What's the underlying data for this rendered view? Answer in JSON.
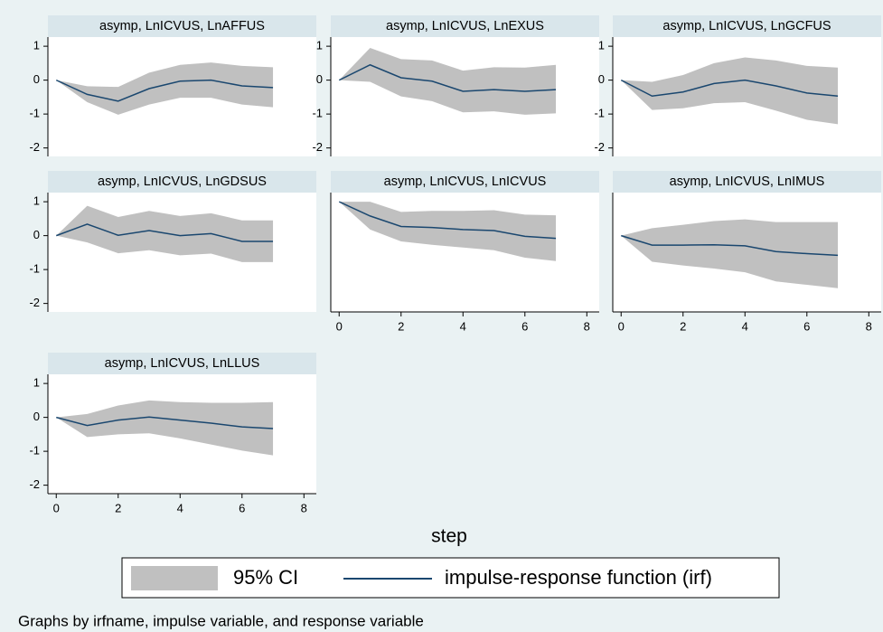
{
  "chart_data": [
    {
      "type": "line",
      "title": "asymp, LnICVUS, LnAFFUS",
      "x": [
        0,
        1,
        2,
        3,
        4,
        5,
        6,
        7
      ],
      "values": [
        0,
        -0.42,
        -0.62,
        -0.25,
        -0.03,
        0,
        -0.17,
        -0.22
      ],
      "band": {
        "upper": [
          0,
          -0.18,
          -0.2,
          0.22,
          0.45,
          0.52,
          0.42,
          0.38
        ],
        "lower": [
          0,
          -0.65,
          -1.02,
          -0.72,
          -0.52,
          -0.52,
          -0.72,
          -0.8
        ]
      },
      "xlim": [
        -0.27,
        8.4
      ],
      "ylim": [
        -2.25,
        1.27
      ],
      "yticks": [
        -2,
        -1,
        0,
        1
      ]
    },
    {
      "type": "line",
      "title": "asymp, LnICVUS, LnEXUS",
      "x": [
        0,
        1,
        2,
        3,
        4,
        5,
        6,
        7
      ],
      "values": [
        0,
        0.45,
        0.07,
        -0.03,
        -0.33,
        -0.28,
        -0.33,
        -0.28
      ],
      "band": {
        "upper": [
          0,
          0.95,
          0.62,
          0.58,
          0.28,
          0.38,
          0.37,
          0.45
        ],
        "lower": [
          0,
          -0.05,
          -0.48,
          -0.62,
          -0.95,
          -0.92,
          -1.02,
          -0.98
        ]
      },
      "xlim": [
        -0.27,
        8.4
      ],
      "ylim": [
        -2.25,
        1.27
      ],
      "yticks": [
        -2,
        -1,
        0,
        1
      ]
    },
    {
      "type": "line",
      "title": "asymp, LnICVUS, LnGCFUS",
      "x": [
        0,
        1,
        2,
        3,
        4,
        5,
        6,
        7
      ],
      "values": [
        0,
        -0.47,
        -0.35,
        -0.1,
        0,
        -0.17,
        -0.38,
        -0.47
      ],
      "band": {
        "upper": [
          0,
          -0.05,
          0.15,
          0.5,
          0.67,
          0.58,
          0.42,
          0.37
        ],
        "lower": [
          0,
          -0.88,
          -0.83,
          -0.68,
          -0.65,
          -0.9,
          -1.17,
          -1.3
        ]
      },
      "xlim": [
        -0.27,
        8.4
      ],
      "ylim": [
        -2.25,
        1.27
      ],
      "yticks": [
        -2,
        -1,
        0,
        1
      ]
    },
    {
      "type": "line",
      "title": "asymp, LnICVUS, LnGDSUS",
      "x": [
        0,
        1,
        2,
        3,
        4,
        5,
        6,
        7
      ],
      "values": [
        0,
        0.34,
        0.01,
        0.15,
        0,
        0.06,
        -0.17,
        -0.17
      ],
      "band": {
        "upper": [
          0,
          0.88,
          0.55,
          0.73,
          0.58,
          0.66,
          0.45,
          0.45
        ],
        "lower": [
          0,
          -0.2,
          -0.52,
          -0.43,
          -0.58,
          -0.53,
          -0.78,
          -0.78
        ]
      },
      "xlim": [
        -0.27,
        8.4
      ],
      "ylim": [
        -2.25,
        1.27
      ],
      "yticks": [
        -2,
        -1,
        0,
        1
      ]
    },
    {
      "type": "line",
      "title": "asymp, LnICVUS, LnICVUS",
      "x": [
        0,
        1,
        2,
        3,
        4,
        5,
        6,
        7
      ],
      "values": [
        1,
        0.58,
        0.27,
        0.24,
        0.18,
        0.15,
        -0.02,
        -0.08
      ],
      "band": {
        "upper": [
          1,
          1,
          0.7,
          0.73,
          0.73,
          0.75,
          0.62,
          0.6
        ],
        "lower": [
          1,
          0.18,
          -0.17,
          -0.27,
          -0.35,
          -0.43,
          -0.65,
          -0.75
        ]
      },
      "xlim": [
        -0.27,
        8.4
      ],
      "ylim": [
        -2.25,
        1.27
      ],
      "xticks": [
        0,
        2,
        4,
        6,
        8
      ]
    },
    {
      "type": "line",
      "title": "asymp, LnICVUS, LnIMUS",
      "x": [
        0,
        1,
        2,
        3,
        4,
        5,
        6,
        7
      ],
      "values": [
        0,
        -0.28,
        -0.28,
        -0.27,
        -0.3,
        -0.47,
        -0.53,
        -0.58
      ],
      "band": {
        "upper": [
          0,
          0.22,
          0.32,
          0.43,
          0.48,
          0.4,
          0.4,
          0.4
        ],
        "lower": [
          0,
          -0.77,
          -0.88,
          -0.97,
          -1.08,
          -1.35,
          -1.45,
          -1.55
        ]
      },
      "xlim": [
        -0.27,
        8.4
      ],
      "ylim": [
        -2.25,
        1.27
      ],
      "xticks": [
        0,
        2,
        4,
        6,
        8
      ]
    },
    {
      "type": "line",
      "title": "asymp, LnICVUS, LnLLUS",
      "x": [
        0,
        1,
        2,
        3,
        4,
        5,
        6,
        7
      ],
      "values": [
        0,
        -0.24,
        -0.08,
        0.01,
        -0.08,
        -0.17,
        -0.28,
        -0.33
      ],
      "band": {
        "upper": [
          0,
          0.1,
          0.35,
          0.5,
          0.45,
          0.43,
          0.43,
          0.45
        ],
        "lower": [
          0,
          -0.58,
          -0.5,
          -0.47,
          -0.62,
          -0.8,
          -0.98,
          -1.12
        ]
      },
      "xlim": [
        -0.27,
        8.4
      ],
      "ylim": [
        -2.25,
        1.27
      ],
      "yticks": [
        -2,
        -1,
        0,
        1
      ],
      "xticks": [
        0,
        2,
        4,
        6,
        8
      ]
    }
  ],
  "xlabel": "step",
  "legend": [
    {
      "name": "95% CI",
      "color": "#c0c0c0"
    },
    {
      "name": "impulse-response function (irf)",
      "color": "#1a476f"
    }
  ],
  "note": "Graphs by irfname, impulse variable, and response variable"
}
